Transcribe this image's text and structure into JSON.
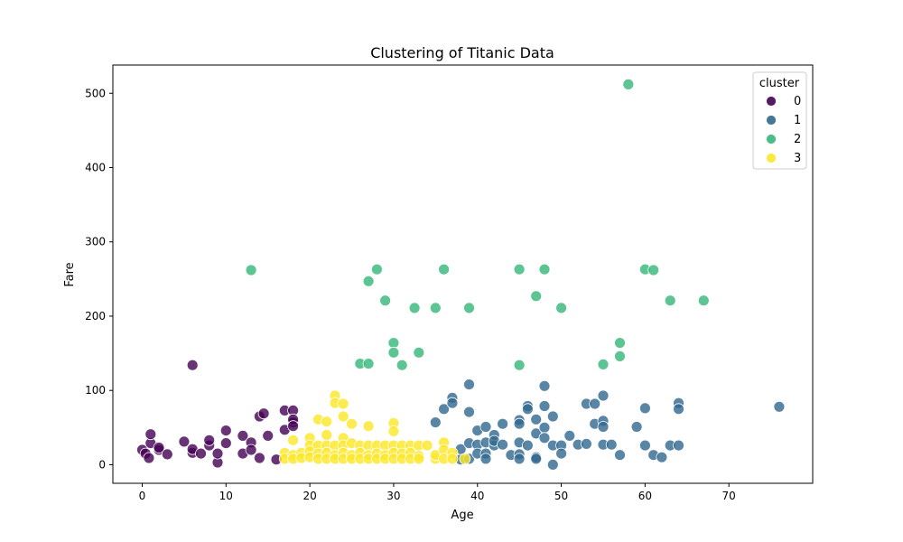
{
  "chart_data": {
    "type": "scatter",
    "title": "Clustering of Titanic Data",
    "xlabel": "Age",
    "ylabel": "Fare",
    "xlim": [
      -3.5,
      80
    ],
    "ylim": [
      -25,
      538
    ],
    "xticks": [
      0,
      10,
      20,
      30,
      40,
      50,
      60,
      70
    ],
    "yticks": [
      0,
      100,
      200,
      300,
      400,
      500
    ],
    "grid": false,
    "legend": {
      "title": "cluster",
      "placement": "top-right"
    },
    "series": [
      {
        "name": "0",
        "color": "#440154",
        "points": [
          [
            0,
            20
          ],
          [
            0.4,
            15
          ],
          [
            0.8,
            9
          ],
          [
            1,
            29
          ],
          [
            1,
            41
          ],
          [
            2,
            20
          ],
          [
            2,
            23
          ],
          [
            3,
            14
          ],
          [
            5,
            31
          ],
          [
            6,
            134
          ],
          [
            6,
            16
          ],
          [
            6,
            21
          ],
          [
            7,
            15
          ],
          [
            8,
            26
          ],
          [
            8,
            33
          ],
          [
            9,
            3
          ],
          [
            9,
            15
          ],
          [
            10,
            46
          ],
          [
            10,
            29
          ],
          [
            12,
            15
          ],
          [
            12,
            39
          ],
          [
            13,
            30
          ],
          [
            13,
            20
          ],
          [
            14,
            65
          ],
          [
            14.5,
            69
          ],
          [
            14,
            9
          ],
          [
            15,
            39
          ],
          [
            16,
            7
          ],
          [
            17,
            73
          ],
          [
            17,
            47
          ],
          [
            18,
            73
          ],
          [
            18,
            57
          ],
          [
            18,
            61
          ],
          [
            18,
            52
          ]
        ]
      },
      {
        "name": "1",
        "color": "#31688e",
        "points": [
          [
            35,
            57
          ],
          [
            36,
            75
          ],
          [
            37,
            90
          ],
          [
            37,
            83
          ],
          [
            38,
            7
          ],
          [
            38,
            21
          ],
          [
            39,
            108
          ],
          [
            39,
            71
          ],
          [
            39,
            29
          ],
          [
            39,
            8
          ],
          [
            40,
            46
          ],
          [
            40,
            27
          ],
          [
            40,
            15
          ],
          [
            41,
            51
          ],
          [
            41,
            30
          ],
          [
            41,
            15
          ],
          [
            41,
            8
          ],
          [
            42,
            40
          ],
          [
            42,
            26
          ],
          [
            42,
            32
          ],
          [
            43,
            55
          ],
          [
            43,
            27
          ],
          [
            44,
            13
          ],
          [
            45,
            60
          ],
          [
            45,
            55
          ],
          [
            45,
            30
          ],
          [
            45,
            14
          ],
          [
            45,
            8
          ],
          [
            46,
            79
          ],
          [
            46,
            75
          ],
          [
            46,
            26
          ],
          [
            47,
            61
          ],
          [
            47,
            42
          ],
          [
            47,
            10
          ],
          [
            47,
            8
          ],
          [
            48,
            106
          ],
          [
            48,
            79
          ],
          [
            48,
            50
          ],
          [
            48,
            36
          ],
          [
            49,
            65
          ],
          [
            49,
            26
          ],
          [
            49,
            0
          ],
          [
            50,
            26
          ],
          [
            50,
            15
          ],
          [
            51,
            39
          ],
          [
            52,
            27
          ],
          [
            53,
            82
          ],
          [
            53,
            28
          ],
          [
            54,
            82
          ],
          [
            54,
            55
          ],
          [
            55,
            93
          ],
          [
            55,
            59
          ],
          [
            55,
            51
          ],
          [
            55,
            27
          ],
          [
            56,
            27
          ],
          [
            57,
            13
          ],
          [
            59,
            51
          ],
          [
            60,
            76
          ],
          [
            60,
            26
          ],
          [
            61,
            13
          ],
          [
            62,
            10
          ],
          [
            63,
            26
          ],
          [
            64,
            83
          ],
          [
            64,
            75
          ],
          [
            64,
            26
          ],
          [
            76,
            78
          ]
        ]
      },
      {
        "name": "2",
        "color": "#35b779",
        "points": [
          [
            13,
            262
          ],
          [
            26,
            136
          ],
          [
            27,
            247
          ],
          [
            27,
            136
          ],
          [
            28,
            263
          ],
          [
            29,
            221
          ],
          [
            30,
            164
          ],
          [
            30,
            151
          ],
          [
            31,
            134
          ],
          [
            32.5,
            211
          ],
          [
            33,
            151
          ],
          [
            35,
            211
          ],
          [
            36,
            263
          ],
          [
            39,
            211
          ],
          [
            45,
            263
          ],
          [
            45,
            134
          ],
          [
            47,
            227
          ],
          [
            48,
            263
          ],
          [
            50,
            211
          ],
          [
            55,
            135
          ],
          [
            57,
            164
          ],
          [
            57,
            146
          ],
          [
            58,
            512
          ],
          [
            60,
            263
          ],
          [
            61,
            262
          ],
          [
            63,
            221
          ],
          [
            67,
            221
          ]
        ]
      },
      {
        "name": "3",
        "color": "#fde725",
        "points": [
          [
            17,
            16
          ],
          [
            17,
            8
          ],
          [
            18,
            33
          ],
          [
            18,
            13
          ],
          [
            18,
            8
          ],
          [
            19,
            16
          ],
          [
            19,
            9
          ],
          [
            20,
            36
          ],
          [
            20,
            26
          ],
          [
            20,
            18
          ],
          [
            20,
            10
          ],
          [
            21,
            61
          ],
          [
            21,
            26
          ],
          [
            21,
            15
          ],
          [
            21,
            8
          ],
          [
            22,
            58
          ],
          [
            22,
            40
          ],
          [
            22,
            26
          ],
          [
            22,
            16
          ],
          [
            22,
            8
          ],
          [
            23,
            93
          ],
          [
            23,
            83
          ],
          [
            23,
            26
          ],
          [
            23,
            13
          ],
          [
            23,
            8
          ],
          [
            24,
            82
          ],
          [
            24,
            65
          ],
          [
            24,
            36
          ],
          [
            24,
            26
          ],
          [
            24,
            16
          ],
          [
            24,
            8
          ],
          [
            25,
            55
          ],
          [
            25,
            29
          ],
          [
            25,
            13
          ],
          [
            25,
            8
          ],
          [
            26,
            26
          ],
          [
            26,
            16
          ],
          [
            26,
            8
          ],
          [
            27,
            52
          ],
          [
            27,
            26
          ],
          [
            27,
            13
          ],
          [
            27,
            8
          ],
          [
            28,
            26
          ],
          [
            28,
            15
          ],
          [
            28,
            8
          ],
          [
            29,
            26
          ],
          [
            29,
            13
          ],
          [
            29,
            8
          ],
          [
            30,
            56
          ],
          [
            30,
            45
          ],
          [
            30,
            26
          ],
          [
            30,
            16
          ],
          [
            30,
            8
          ],
          [
            31,
            26
          ],
          [
            31,
            15
          ],
          [
            31,
            8
          ],
          [
            32,
            26
          ],
          [
            32,
            16
          ],
          [
            32,
            8
          ],
          [
            33,
            26
          ],
          [
            33,
            12
          ],
          [
            33,
            8
          ],
          [
            34,
            26
          ],
          [
            35,
            8
          ],
          [
            35,
            13
          ],
          [
            36,
            30
          ],
          [
            36,
            20
          ],
          [
            36,
            8
          ],
          [
            37,
            16
          ],
          [
            37,
            8
          ],
          [
            38.5,
            8
          ]
        ]
      }
    ]
  }
}
